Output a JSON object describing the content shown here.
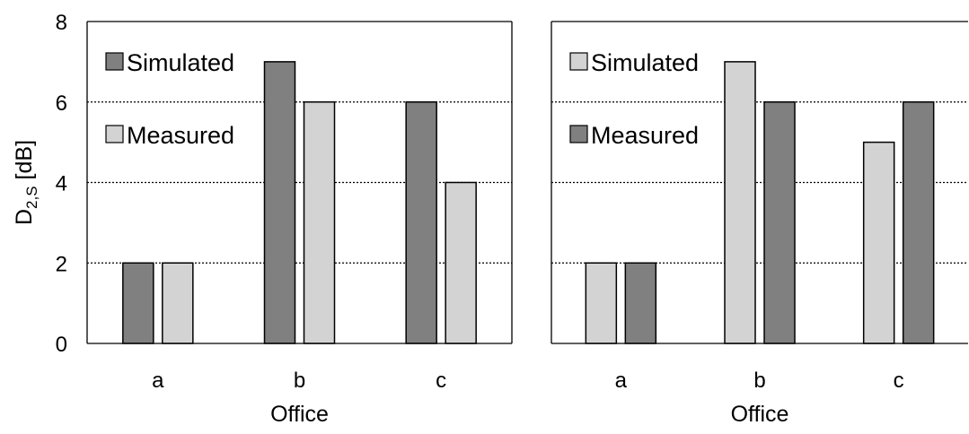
{
  "chart_data": [
    {
      "type": "bar",
      "categories": [
        "a",
        "b",
        "c"
      ],
      "xlabel": "Office",
      "ylabel": "D2,S [dB]",
      "ylabel_main": "D",
      "ylabel_sub": "2,S",
      "ylabel_rest": " [dB]",
      "ylim": [
        0,
        8
      ],
      "yticks": [
        "0",
        "2",
        "4",
        "6",
        "8"
      ],
      "grid": "horizontal dotted",
      "legend": "top-left",
      "series": [
        {
          "name": "Simulated",
          "values": [
            2,
            7,
            6
          ],
          "color": "#808080"
        },
        {
          "name": "Measured",
          "values": [
            2,
            6,
            4
          ],
          "color": "#d3d3d3"
        }
      ]
    },
    {
      "type": "bar",
      "categories": [
        "a",
        "b",
        "c"
      ],
      "xlabel": "Office",
      "ylim": [
        0,
        8
      ],
      "grid": "horizontal dotted",
      "legend": "top-left",
      "series": [
        {
          "name": "Simulated",
          "values": [
            2,
            7,
            5
          ],
          "color": "#d3d3d3"
        },
        {
          "name": "Measured",
          "values": [
            2,
            6,
            6
          ],
          "color": "#808080"
        }
      ]
    }
  ]
}
